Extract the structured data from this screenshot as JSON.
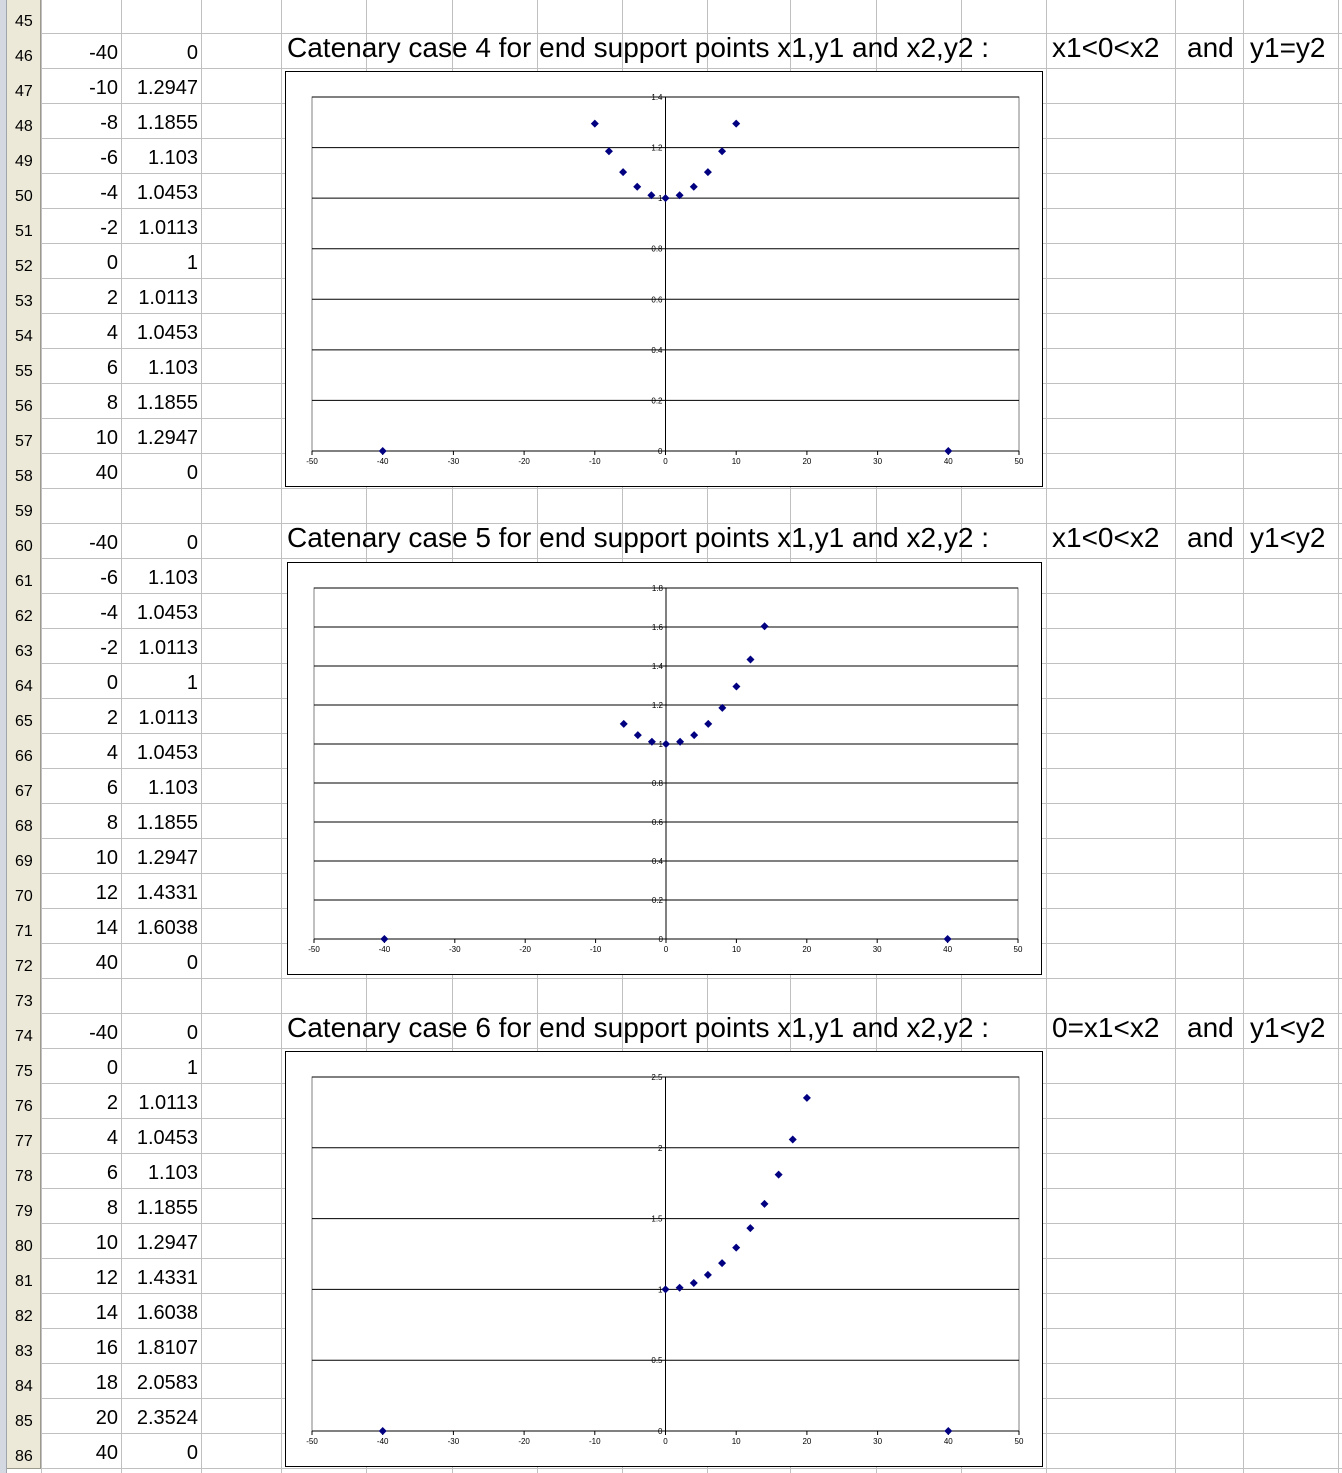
{
  "sheet": {
    "first_row": 45,
    "rows": [
      {
        "r": 45,
        "b": "",
        "c": ""
      },
      {
        "r": 46,
        "b": "-40",
        "c": "0"
      },
      {
        "r": 47,
        "b": "-10",
        "c": "1.2947"
      },
      {
        "r": 48,
        "b": "-8",
        "c": "1.1855"
      },
      {
        "r": 49,
        "b": "-6",
        "c": "1.103"
      },
      {
        "r": 50,
        "b": "-4",
        "c": "1.0453"
      },
      {
        "r": 51,
        "b": "-2",
        "c": "1.0113"
      },
      {
        "r": 52,
        "b": "0",
        "c": "1"
      },
      {
        "r": 53,
        "b": "2",
        "c": "1.0113"
      },
      {
        "r": 54,
        "b": "4",
        "c": "1.0453"
      },
      {
        "r": 55,
        "b": "6",
        "c": "1.103"
      },
      {
        "r": 56,
        "b": "8",
        "c": "1.1855"
      },
      {
        "r": 57,
        "b": "10",
        "c": "1.2947"
      },
      {
        "r": 58,
        "b": "40",
        "c": "0"
      },
      {
        "r": 59,
        "b": "",
        "c": ""
      },
      {
        "r": 60,
        "b": "-40",
        "c": "0"
      },
      {
        "r": 61,
        "b": "-6",
        "c": "1.103"
      },
      {
        "r": 62,
        "b": "-4",
        "c": "1.0453"
      },
      {
        "r": 63,
        "b": "-2",
        "c": "1.0113"
      },
      {
        "r": 64,
        "b": "0",
        "c": "1"
      },
      {
        "r": 65,
        "b": "2",
        "c": "1.0113"
      },
      {
        "r": 66,
        "b": "4",
        "c": "1.0453"
      },
      {
        "r": 67,
        "b": "6",
        "c": "1.103"
      },
      {
        "r": 68,
        "b": "8",
        "c": "1.1855"
      },
      {
        "r": 69,
        "b": "10",
        "c": "1.2947"
      },
      {
        "r": 70,
        "b": "12",
        "c": "1.4331"
      },
      {
        "r": 71,
        "b": "14",
        "c": "1.6038"
      },
      {
        "r": 72,
        "b": "40",
        "c": "0"
      },
      {
        "r": 73,
        "b": "",
        "c": ""
      },
      {
        "r": 74,
        "b": "-40",
        "c": "0"
      },
      {
        "r": 75,
        "b": "0",
        "c": "1"
      },
      {
        "r": 76,
        "b": "2",
        "c": "1.0113"
      },
      {
        "r": 77,
        "b": "4",
        "c": "1.0453"
      },
      {
        "r": 78,
        "b": "6",
        "c": "1.103"
      },
      {
        "r": 79,
        "b": "8",
        "c": "1.1855"
      },
      {
        "r": 80,
        "b": "10",
        "c": "1.2947"
      },
      {
        "r": 81,
        "b": "12",
        "c": "1.4331"
      },
      {
        "r": 82,
        "b": "14",
        "c": "1.6038"
      },
      {
        "r": 83,
        "b": "16",
        "c": "1.8107"
      },
      {
        "r": 84,
        "b": "18",
        "c": "2.0583"
      },
      {
        "r": 85,
        "b": "20",
        "c": "2.3524"
      },
      {
        "r": 86,
        "b": "40",
        "c": "0"
      }
    ]
  },
  "titles": [
    {
      "row": 46,
      "text": "Catenary case 4 for end support points x1,y1 and x2,y2 :",
      "cond1": "x1<0<x2",
      "and": "and",
      "cond2": "y1=y2"
    },
    {
      "row": 60,
      "text": "Catenary case 5 for end support points x1,y1 and x2,y2 :",
      "cond1": "x1<0<x2",
      "and": "and",
      "cond2": "y1<y2"
    },
    {
      "row": 74,
      "text": "Catenary case 6 for end support points x1,y1 and x2,y2 :",
      "cond1": "0=x1<x2",
      "and": "and",
      "cond2": "y1<y2"
    }
  ],
  "colors": {
    "marker": "#000080",
    "grid": "#c0c0c0",
    "row_header": "#ece9d8"
  },
  "chart_data": [
    {
      "type": "scatter",
      "title": "",
      "xlim": [
        -50,
        50
      ],
      "ylim": [
        0,
        1.4
      ],
      "xticks": [
        "-50",
        "-40",
        "-30",
        "-20",
        "-10",
        "0",
        "10",
        "20",
        "30",
        "40",
        "50"
      ],
      "yticks": [
        "0",
        "0.2",
        "0.4",
        "0.6",
        "0.8",
        "1",
        "1.2",
        "1.4"
      ],
      "grid": "horizontal major",
      "x": [
        -40,
        -10,
        -8,
        -6,
        -4,
        -2,
        0,
        2,
        4,
        6,
        8,
        10,
        40
      ],
      "y": [
        0,
        1.2947,
        1.1855,
        1.103,
        1.0453,
        1.0113,
        1,
        1.0113,
        1.0453,
        1.103,
        1.1855,
        1.2947,
        0
      ]
    },
    {
      "type": "scatter",
      "title": "",
      "xlim": [
        -50,
        50
      ],
      "ylim": [
        0,
        1.8
      ],
      "xticks": [
        "-50",
        "-40",
        "-30",
        "-20",
        "-10",
        "0",
        "10",
        "20",
        "30",
        "40",
        "50"
      ],
      "yticks": [
        "0",
        "0.2",
        "0.4",
        "0.6",
        "0.8",
        "1",
        "1.2",
        "1.4",
        "1.6",
        "1.8"
      ],
      "grid": "horizontal major",
      "x": [
        -40,
        -6,
        -4,
        -2,
        0,
        2,
        4,
        6,
        8,
        10,
        12,
        14,
        40
      ],
      "y": [
        0,
        1.103,
        1.0453,
        1.0113,
        1,
        1.0113,
        1.0453,
        1.103,
        1.1855,
        1.2947,
        1.4331,
        1.6038,
        0
      ]
    },
    {
      "type": "scatter",
      "title": "",
      "xlim": [
        -50,
        50
      ],
      "ylim": [
        0,
        2.5
      ],
      "xticks": [
        "-50",
        "-40",
        "-30",
        "-20",
        "-10",
        "0",
        "10",
        "20",
        "30",
        "40",
        "50"
      ],
      "yticks": [
        "0",
        "0.5",
        "1",
        "1.5",
        "2",
        "2.5"
      ],
      "grid": "horizontal major",
      "x": [
        -40,
        0,
        2,
        4,
        6,
        8,
        10,
        12,
        14,
        16,
        18,
        20,
        40
      ],
      "y": [
        0,
        1,
        1.0113,
        1.0453,
        1.103,
        1.1855,
        1.2947,
        1.4331,
        1.6038,
        1.8107,
        2.0583,
        2.3524,
        0
      ]
    }
  ]
}
